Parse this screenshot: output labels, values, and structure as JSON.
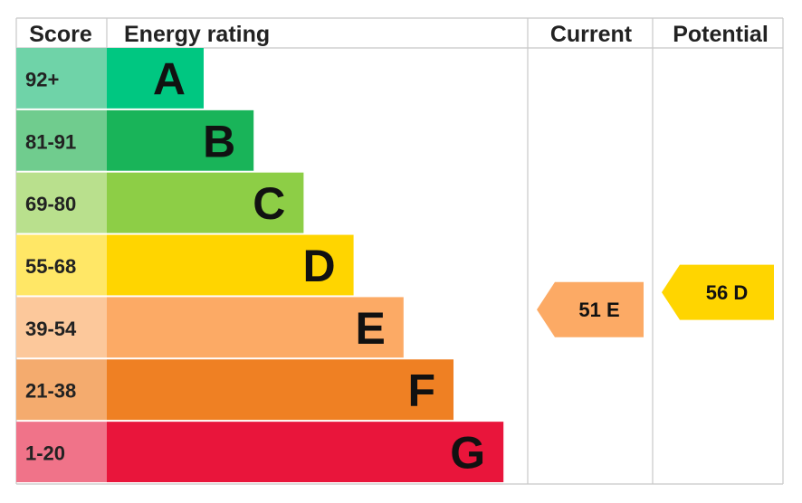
{
  "chart_data": {
    "type": "bar",
    "headers": {
      "score": "Score",
      "energy_rating": "Energy rating",
      "current": "Current",
      "potential": "Potential"
    },
    "bands": [
      {
        "letter": "A",
        "score_range": "92+",
        "color": "#00c781",
        "score_bg": "#6fd3a8"
      },
      {
        "letter": "B",
        "score_range": "81-91",
        "color": "#19b459",
        "score_bg": "#70cc8e"
      },
      {
        "letter": "C",
        "score_range": "69-80",
        "color": "#8dce46",
        "score_bg": "#b9e08d"
      },
      {
        "letter": "D",
        "score_range": "55-68",
        "color": "#ffd500",
        "score_bg": "#ffe766"
      },
      {
        "letter": "E",
        "score_range": "39-54",
        "color": "#fcaa65",
        "score_bg": "#fcc89b"
      },
      {
        "letter": "F",
        "score_range": "21-38",
        "color": "#ef8023",
        "score_bg": "#f4ab6e"
      },
      {
        "letter": "G",
        "score_range": "1-20",
        "color": "#e9153b",
        "score_bg": "#f07389"
      }
    ],
    "current": {
      "score": 51,
      "band": "E",
      "label": "51 E",
      "color": "#fcaa65"
    },
    "potential": {
      "score": 56,
      "band": "D",
      "label": "56 D",
      "color": "#ffd500"
    }
  }
}
